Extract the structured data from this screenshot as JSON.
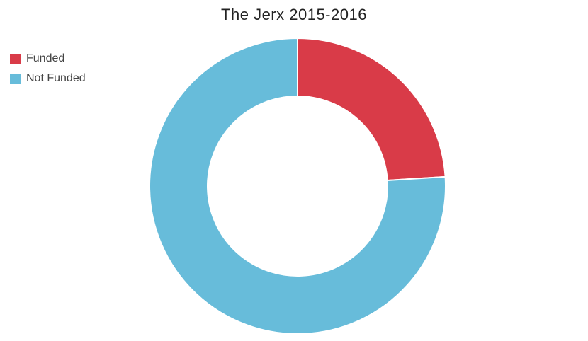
{
  "chart_data": {
    "type": "pie",
    "title": "The Jerx 2015-2016",
    "legend": "top-left",
    "series": [
      {
        "name": "",
        "categories": [
          "Funded",
          "Not Funded"
        ],
        "values": [
          24,
          76
        ],
        "colors": [
          "#d93b48",
          "#67bcda"
        ]
      }
    ],
    "legend_entries": [
      {
        "label": "Funded",
        "color": "#d93b48"
      },
      {
        "label": "Not Funded",
        "color": "#67bcda"
      }
    ]
  }
}
